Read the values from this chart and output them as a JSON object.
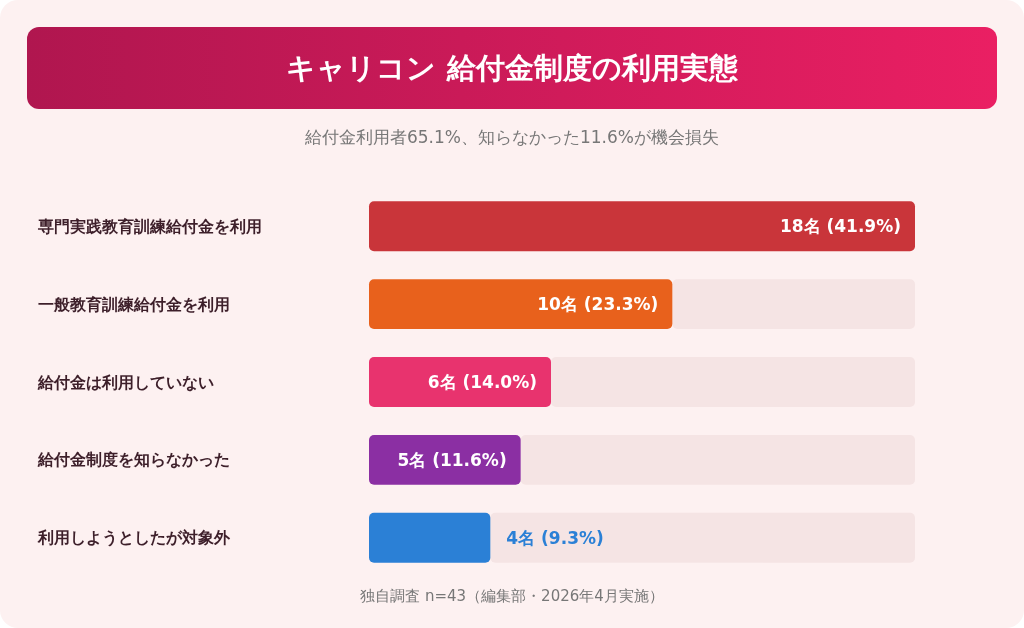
{
  "chart_data": {
    "type": "bar",
    "orientation": "horizontal",
    "title": "キャリコン 給付金制度の利用実態",
    "subtitle": "給付金利用者65.1%、知らなかった11.6%が機会損失",
    "categories": [
      "専門実践教育訓練給付金を利用",
      "一般教育訓練給付金を利用",
      "給付金は利用していない",
      "給付金制度を知らなかった",
      "利用しようとしたが対象外"
    ],
    "values": [
      18,
      10,
      6,
      5,
      4
    ],
    "colors": [
      "#c9353a",
      "#e8611c",
      "#e8336e",
      "#8b2fa3",
      "#2b80d6"
    ],
    "value_labels": [
      "18名 (41.9%)",
      "10名 (23.3%)",
      "6名 (14.0%)",
      "5名 (11.6%)",
      "4名 (9.3%)"
    ],
    "annotations": [
      "独自調査 n=43（編集部・2026年4月実施）"
    ]
  }
}
